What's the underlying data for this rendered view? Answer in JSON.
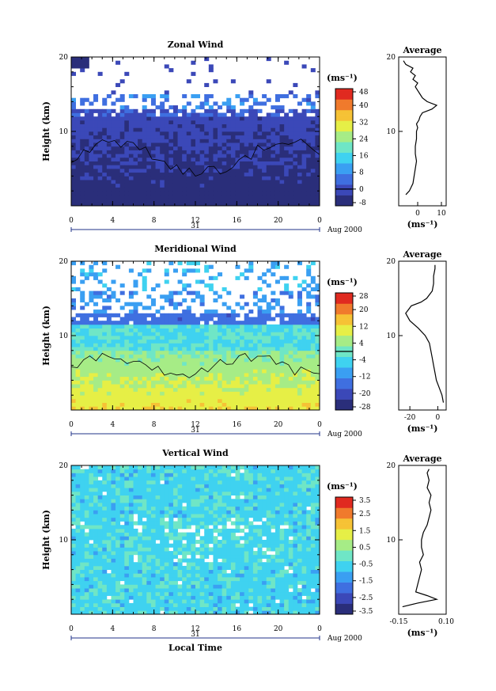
{
  "chart_data": [
    {
      "type": "heatmap",
      "title": "Zonal Wind",
      "ylabel": "Height (km)",
      "unit_label": "(ms⁻¹)",
      "date_label": "Aug 2000",
      "day_label": "31",
      "x_ticks": [
        "0",
        "4",
        "8",
        "12",
        "16",
        "20",
        "0"
      ],
      "y_ticks": [
        "20",
        "10"
      ],
      "xlim": [
        0,
        24
      ],
      "ylim": [
        0,
        20
      ],
      "colorbar_ticks": [
        "48",
        "40",
        "32",
        "24",
        "16",
        "8",
        "0",
        "-8"
      ],
      "colorbar_range": [
        -8,
        48
      ],
      "profile": {
        "title": "Average",
        "xlabel": "(ms⁻¹)",
        "x_ticks": [
          "0",
          "10"
        ],
        "y_ticks": [
          "20",
          "10"
        ],
        "xlim": [
          -8,
          12
        ],
        "heights": [
          1.5,
          2,
          3,
          4,
          5,
          6,
          7,
          8,
          9,
          10,
          10.5,
          11,
          11.5,
          12,
          12.5,
          13,
          13.5,
          14,
          14.5,
          15,
          15.5,
          16,
          16.5,
          17,
          17.5,
          18,
          18.5,
          19,
          19.5
        ],
        "values": [
          -5,
          -3.5,
          -2,
          -1.5,
          -1,
          -0.5,
          -1,
          -1,
          -0.5,
          -0.5,
          0,
          -0.5,
          0.5,
          1,
          2,
          6,
          8,
          4,
          2,
          1,
          0,
          -1,
          0,
          -2,
          -1,
          -3,
          -2,
          -5,
          -6
        ]
      }
    },
    {
      "type": "heatmap",
      "title": "Meridional Wind",
      "ylabel": "Height (km)",
      "unit_label": "(ms⁻¹)",
      "date_label": "Aug 2000",
      "day_label": "31",
      "x_ticks": [
        "0",
        "4",
        "8",
        "12",
        "16",
        "20",
        "0"
      ],
      "y_ticks": [
        "20",
        "10"
      ],
      "xlim": [
        0,
        24
      ],
      "ylim": [
        0,
        20
      ],
      "colorbar_ticks": [
        "28",
        "20",
        "12",
        "4",
        "-4",
        "-12",
        "-20",
        "-28"
      ],
      "colorbar_range": [
        -28,
        28
      ],
      "profile": {
        "title": "Average",
        "xlabel": "(ms⁻¹)",
        "x_ticks": [
          "-20",
          "0"
        ],
        "y_ticks": [
          "20",
          "10"
        ],
        "xlim": [
          -28,
          6
        ],
        "heights": [
          1,
          2,
          3,
          4,
          5,
          6,
          7,
          8,
          9,
          10,
          11,
          12,
          13,
          13.5,
          14,
          14.5,
          15,
          16,
          17,
          18,
          19,
          19.5
        ],
        "values": [
          4,
          3,
          1,
          -1,
          -2,
          -3,
          -4,
          -5,
          -6,
          -9,
          -14,
          -20,
          -23,
          -21,
          -19,
          -12,
          -8,
          -4,
          -3,
          -3,
          -2,
          -2
        ]
      }
    },
    {
      "type": "heatmap",
      "title": "Vertical Wind",
      "ylabel": "Height (km)",
      "xlabel": "Local Time",
      "unit_label": "(ms⁻¹)",
      "date_label": "Aug 2000",
      "day_label": "31",
      "x_ticks": [
        "0",
        "4",
        "8",
        "12",
        "16",
        "20",
        "0"
      ],
      "y_ticks": [
        "20",
        "10"
      ],
      "xlim": [
        0,
        24
      ],
      "ylim": [
        0,
        20
      ],
      "colorbar_ticks": [
        "3.5",
        "2.5",
        "1.5",
        "0.5",
        "-0.5",
        "-1.5",
        "-2.5",
        "-3.5"
      ],
      "colorbar_range": [
        -3.5,
        3.5
      ],
      "profile": {
        "title": "Average",
        "xlabel": "(ms⁻¹)",
        "x_ticks": [
          "-0.15",
          "0.10"
        ],
        "y_ticks": [
          "20",
          "10"
        ],
        "xlim": [
          -0.15,
          0.1
        ],
        "heights": [
          1,
          1.5,
          2,
          2.5,
          3,
          4,
          5,
          6,
          7,
          8,
          9,
          10,
          11,
          12,
          13,
          14,
          15,
          16,
          17,
          18,
          19,
          19.5
        ],
        "values": [
          -0.13,
          -0.05,
          0.05,
          0.0,
          -0.06,
          -0.05,
          -0.04,
          -0.03,
          -0.04,
          -0.02,
          -0.03,
          -0.03,
          -0.02,
          0.0,
          0.01,
          0.02,
          0.01,
          0.02,
          0.0,
          0.01,
          0.0,
          0.01
        ]
      }
    }
  ]
}
